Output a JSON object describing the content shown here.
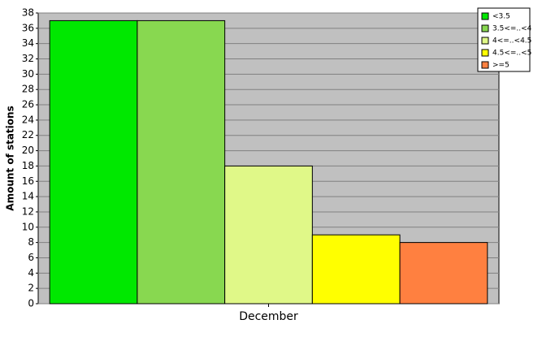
{
  "chart_data": {
    "type": "bar",
    "y_label": "Amount of stations",
    "categories": [
      "December"
    ],
    "series": [
      {
        "name": "<3.5",
        "color": "#00e800",
        "values": [
          37
        ]
      },
      {
        "name": "3.5<=..<4",
        "color": "#88d850",
        "values": [
          37
        ]
      },
      {
        "name": "4<=..<4.5",
        "color": "#e0f888",
        "values": [
          18
        ]
      },
      {
        "name": "4.5<=..<5",
        "color": "#ffff00",
        "values": [
          9
        ]
      },
      {
        "name": ">=5",
        "color": "#ff8040",
        "values": [
          8
        ]
      }
    ],
    "ylim": [
      0,
      38
    ],
    "yticks": [
      0,
      2,
      4,
      6,
      8,
      10,
      12,
      14,
      16,
      18,
      20,
      22,
      24,
      26,
      28,
      30,
      32,
      34,
      36,
      38
    ],
    "grid": true,
    "legend": "top-right",
    "plot_background": "#c0c0c0"
  }
}
